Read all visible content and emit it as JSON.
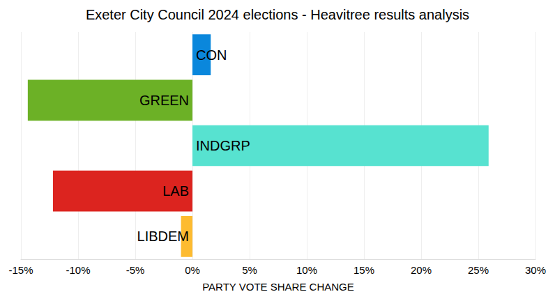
{
  "chart_data": {
    "type": "bar",
    "orientation": "horizontal",
    "title": "Exeter City Council 2024 elections - Heavitree results analysis",
    "xlabel": "PARTY VOTE SHARE CHANGE",
    "categories": [
      "CON",
      "GREEN",
      "INDGRP",
      "LAB",
      "LIBDEM"
    ],
    "values": [
      1.6,
      -14.4,
      25.9,
      -12.2,
      -1.0
    ],
    "colors": [
      "#0a87dc",
      "#6cb126",
      "#57e2d0",
      "#dc241f",
      "#fdbb30"
    ],
    "xlim": [
      -15,
      30
    ],
    "xticks": [
      {
        "value": -15,
        "label": "-15%"
      },
      {
        "value": -10,
        "label": "-10%"
      },
      {
        "value": -5,
        "label": "-5%"
      },
      {
        "value": 0,
        "label": "0%"
      },
      {
        "value": 5,
        "label": "5%"
      },
      {
        "value": 10,
        "label": "10%"
      },
      {
        "value": 15,
        "label": "15%"
      },
      {
        "value": 20,
        "label": "20%"
      },
      {
        "value": 25,
        "label": "25%"
      },
      {
        "value": 30,
        "label": "30%"
      }
    ],
    "grid": true,
    "tick_labels": "x"
  }
}
